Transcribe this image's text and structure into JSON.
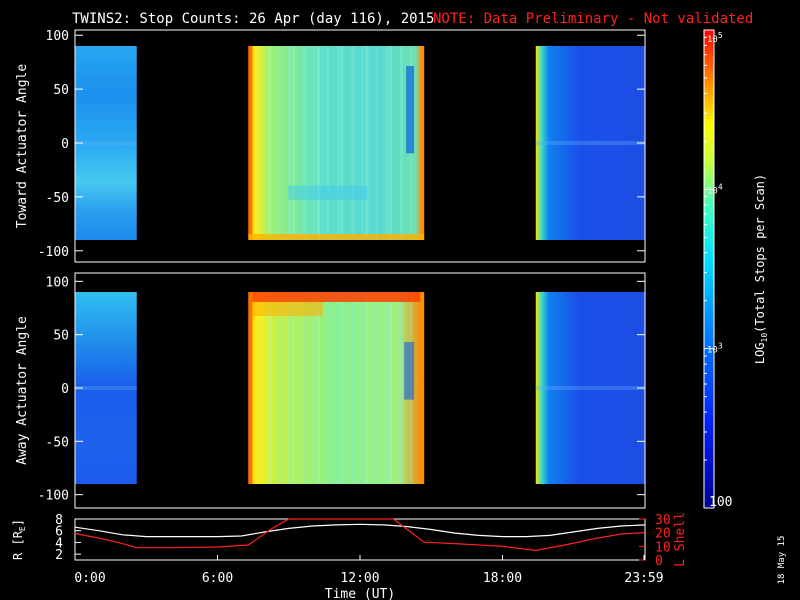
{
  "header": {
    "title": "TWINS2: Stop Counts: 26 Apr (day 116), 2015",
    "note": "NOTE: Data Preliminary - Not validated"
  },
  "panels": {
    "top": {
      "ylabel": "Toward Actuator Angle"
    },
    "bottom": {
      "ylabel": "Away Actuator Angle"
    },
    "ephemeris": {
      "ylabel_left": "R [R",
      "ylabel_left_sub": "E",
      "ylabel_left_end": "]",
      "ylabel_right": "L Shell"
    }
  },
  "colorbar": {
    "label_pre": "LOG",
    "label_sub": "10",
    "label_post": "(Total Stops per Scan)",
    "tick_top": "10",
    "tick_top_exp": "5",
    "tick_mid": "10",
    "tick_mid_exp": "4",
    "tick_low": "10",
    "tick_low_exp": "3",
    "tick_bottom": "100"
  },
  "xaxis": {
    "label": "Time (UT)",
    "ticks": [
      "0:00",
      "6:00",
      "12:00",
      "18:00",
      "23:59"
    ]
  },
  "date_stamp": "18 May 15",
  "chart_data": [
    {
      "type": "heatmap",
      "name": "toward",
      "ylabel": "Toward Actuator Angle",
      "xlabel": "",
      "xlim": [
        0,
        24
      ],
      "ylim": [
        -110,
        110
      ],
      "yticks": [
        "100",
        "50",
        "0",
        "-50",
        "-100"
      ],
      "ytick_values": [
        100,
        50,
        0,
        -50,
        -100
      ],
      "blocks": [
        {
          "x0": 0.0,
          "x1": 2.6,
          "y0": -90,
          "y1": 90,
          "level": "low"
        },
        {
          "x0": 7.3,
          "x1": 14.7,
          "y0": -90,
          "y1": 90,
          "level": "high"
        },
        {
          "x0": 19.4,
          "x1": 24.0,
          "y0": -90,
          "y1": 90,
          "level": "lowest"
        }
      ]
    },
    {
      "type": "heatmap",
      "name": "away",
      "ylabel": "Away Actuator Angle",
      "xlabel": "",
      "xlim": [
        0,
        24
      ],
      "ylim": [
        -110,
        110
      ],
      "yticks": [
        "100",
        "50",
        "0",
        "-50",
        "-100"
      ],
      "ytick_values": [
        100,
        50,
        0,
        -50,
        -100
      ],
      "blocks": [
        {
          "x0": 0.0,
          "x1": 2.6,
          "y0": -90,
          "y1": 90,
          "level": "low"
        },
        {
          "x0": 7.3,
          "x1": 14.7,
          "y0": -90,
          "y1": 90,
          "level": "high"
        },
        {
          "x0": 19.4,
          "x1": 24.0,
          "y0": -90,
          "y1": 90,
          "level": "lowest"
        }
      ]
    },
    {
      "type": "line",
      "name": "ephemeris",
      "xlabel": "Time (UT)",
      "xlim": [
        0,
        24
      ],
      "ylim_left": [
        1,
        8
      ],
      "ylim_right": [
        0,
        30
      ],
      "yticks_left": [
        "8",
        "6",
        "4",
        "2"
      ],
      "ytick_values_left": [
        8,
        6,
        4,
        2
      ],
      "yticks_right": [
        "30",
        "20",
        "10",
        "0"
      ],
      "ytick_values_right": [
        30,
        20,
        10,
        0
      ],
      "series": [
        {
          "name": "R [RE]",
          "axis": "left",
          "color": "#ffffff",
          "x": [
            0,
            1,
            2,
            3,
            4,
            5,
            6,
            7,
            8,
            9,
            10,
            11,
            12,
            13,
            14,
            15,
            16,
            17,
            18,
            19,
            20,
            21,
            22,
            23,
            24
          ],
          "y": [
            6.6,
            6.0,
            5.3,
            5.0,
            5.0,
            5.0,
            5.0,
            5.1,
            5.8,
            6.4,
            6.8,
            7.0,
            7.1,
            7.0,
            6.7,
            6.2,
            5.6,
            5.2,
            5.0,
            5.0,
            5.2,
            5.8,
            6.4,
            6.8,
            7.0
          ]
        },
        {
          "name": "L Shell",
          "axis": "right",
          "color": "#ff2020",
          "x": [
            0,
            1,
            2,
            2.6,
            4,
            6,
            7.3,
            8.2,
            9.0,
            13.4,
            14.7,
            16,
            18,
            19.4,
            20.5,
            22,
            23,
            24
          ],
          "y": [
            19.5,
            16,
            12,
            9,
            9,
            9.5,
            11,
            22,
            30,
            30,
            13,
            12,
            10,
            7,
            10.5,
            16,
            19,
            20
          ]
        }
      ]
    }
  ],
  "colors": {
    "background": "#000000",
    "title": "#ffffff",
    "note": "#ff2020",
    "lshell": "#ff2020"
  }
}
